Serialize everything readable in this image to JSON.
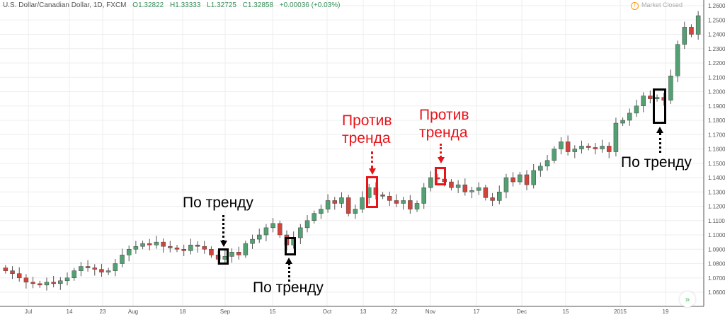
{
  "header": {
    "symbol": "U.S. Dollar/Canadian Dollar, 1D, FXCM",
    "open": "O1.32822",
    "high": "H1.33333",
    "low": "L1.32725",
    "close": "C1.32858",
    "change": "+0.00036 (+0.03%)",
    "status": "Market Closed"
  },
  "colors": {
    "up": "#53a072",
    "down": "#d2433a",
    "grid": "#eeeeee",
    "annotation_red": "#e8141a"
  },
  "annotations": {
    "with_trend_1": "По тренду",
    "with_trend_2": "По тренду",
    "with_trend_3": "По тренду",
    "counter_1": [
      "Против",
      "тренда"
    ],
    "counter_2": [
      "Против",
      "тренда"
    ]
  },
  "chart_data": {
    "type": "candlestick",
    "ylim": [
      1.055,
      1.262
    ],
    "y_ticks": [
      "1.26000",
      "1.25000",
      "1.24000",
      "1.23000",
      "1.22000",
      "1.21000",
      "1.20000",
      "1.19000",
      "1.18000",
      "1.17000",
      "1.16000",
      "1.15000",
      "1.14000",
      "1.13000",
      "1.12000",
      "1.11000",
      "1.10000",
      "1.09000",
      "1.08000",
      "1.07000",
      "1.06000"
    ],
    "x_ticks": [
      "Jul",
      "14",
      "23",
      "Aug",
      "18",
      "Sep",
      "15",
      "Oct",
      "13",
      "22",
      "Nov",
      "17",
      "Dec",
      "15",
      "2015",
      "19"
    ],
    "grid": true,
    "close": [
      1.075,
      1.073,
      1.07,
      1.067,
      1.066,
      1.065,
      1.067,
      1.066,
      1.068,
      1.07,
      1.075,
      1.078,
      1.077,
      1.076,
      1.074,
      1.075,
      1.08,
      1.086,
      1.09,
      1.092,
      1.094,
      1.093,
      1.095,
      1.092,
      1.091,
      1.09,
      1.089,
      1.093,
      1.092,
      1.09,
      1.086,
      1.083,
      1.085,
      1.088,
      1.086,
      1.094,
      1.097,
      1.1,
      1.105,
      1.108,
      1.1,
      1.093,
      1.098,
      1.105,
      1.11,
      1.115,
      1.118,
      1.124,
      1.122,
      1.126,
      1.115,
      1.118,
      1.126,
      1.133,
      1.128,
      1.127,
      1.124,
      1.122,
      1.124,
      1.118,
      1.122,
      1.133,
      1.14,
      1.139,
      1.137,
      1.133,
      1.135,
      1.13,
      1.131,
      1.133,
      1.126,
      1.124,
      1.13,
      1.14,
      1.137,
      1.142,
      1.135,
      1.145,
      1.148,
      1.152,
      1.16,
      1.165,
      1.158,
      1.16,
      1.162,
      1.161,
      1.16,
      1.162,
      1.158,
      1.178,
      1.18,
      1.185,
      1.19,
      1.197,
      1.195,
      1.196,
      1.194,
      1.211,
      1.233,
      1.245,
      1.24,
      1.253
    ]
  }
}
